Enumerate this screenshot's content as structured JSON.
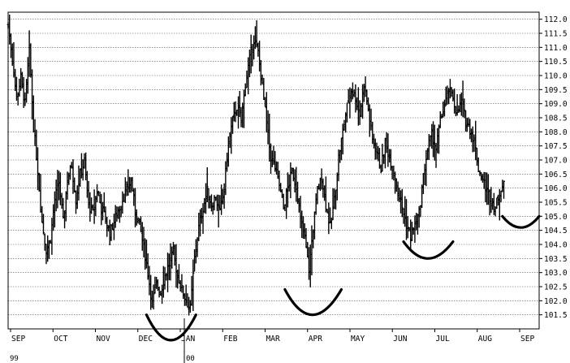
{
  "chart_data": {
    "type": "bar",
    "subtype": "ohlc-price-bars",
    "title": "",
    "xlabel": "",
    "ylabel": "",
    "ylim": [
      101.0,
      112.25
    ],
    "y_ticks": [
      "101.5",
      "102.0",
      "102.5",
      "103.0",
      "103.5",
      "104.0",
      "104.5",
      "105.0",
      "105.5",
      "106.0",
      "106.5",
      "107.0",
      "107.5",
      "108.0",
      "108.5",
      "109.0",
      "109.5",
      "110.0",
      "110.5",
      "111.0",
      "111.5",
      "112.0"
    ],
    "x_ticks": [
      "SEP",
      "OCT",
      "NOV",
      "DEC",
      "JAN",
      "FEB",
      "MAR",
      "APR",
      "MAY",
      "JUN",
      "JUL",
      "AUG",
      "SEP"
    ],
    "year_labels": [
      "99",
      "00"
    ],
    "grid": true,
    "y_axis_side": "right",
    "colors": {
      "bars": "#000000",
      "grid": "#555555",
      "annotation": "#000000"
    },
    "x_range": [
      0,
      376
    ],
    "price_path": [
      [
        0,
        111.8
      ],
      [
        3,
        110.6
      ],
      [
        6,
        109.2
      ],
      [
        9,
        109.9
      ],
      [
        12,
        109.0
      ],
      [
        15,
        110.9
      ],
      [
        18,
        108.2
      ],
      [
        21,
        106.6
      ],
      [
        24,
        104.8
      ],
      [
        27,
        103.8
      ],
      [
        30,
        104.2
      ],
      [
        33,
        105.6
      ],
      [
        36,
        106.2
      ],
      [
        39,
        104.8
      ],
      [
        42,
        106.3
      ],
      [
        45,
        106.8
      ],
      [
        48,
        105.6
      ],
      [
        51,
        106.5
      ],
      [
        54,
        106.9
      ],
      [
        57,
        105.4
      ],
      [
        60,
        105.1
      ],
      [
        63,
        105.9
      ],
      [
        66,
        105.3
      ],
      [
        69,
        104.9
      ],
      [
        72,
        104.4
      ],
      [
        75,
        104.8
      ],
      [
        78,
        105.2
      ],
      [
        81,
        105.6
      ],
      [
        84,
        105.9
      ],
      [
        87,
        106.3
      ],
      [
        90,
        105.2
      ],
      [
        93,
        104.7
      ],
      [
        96,
        103.9
      ],
      [
        99,
        103.0
      ],
      [
        102,
        101.9
      ],
      [
        105,
        102.6
      ],
      [
        108,
        102.3
      ],
      [
        111,
        102.9
      ],
      [
        114,
        103.3
      ],
      [
        117,
        103.7
      ],
      [
        120,
        102.9
      ],
      [
        123,
        102.4
      ],
      [
        126,
        102.0
      ],
      [
        129,
        101.7
      ],
      [
        132,
        103.5
      ],
      [
        135,
        104.6
      ],
      [
        138,
        105.3
      ],
      [
        141,
        105.9
      ],
      [
        144,
        105.4
      ],
      [
        147,
        105.7
      ],
      [
        150,
        105.1
      ],
      [
        153,
        106.0
      ],
      [
        156,
        107.6
      ],
      [
        159,
        108.4
      ],
      [
        162,
        108.9
      ],
      [
        165,
        108.4
      ],
      [
        168,
        109.7
      ],
      [
        171,
        110.6
      ],
      [
        174,
        111.3
      ],
      [
        177,
        110.8
      ],
      [
        180,
        109.6
      ],
      [
        183,
        108.3
      ],
      [
        186,
        107.1
      ],
      [
        189,
        106.7
      ],
      [
        192,
        106.1
      ],
      [
        195,
        105.3
      ],
      [
        198,
        106.0
      ],
      [
        201,
        106.6
      ],
      [
        204,
        106.1
      ],
      [
        207,
        104.9
      ],
      [
        210,
        104.2
      ],
      [
        213,
        103.1
      ],
      [
        216,
        104.6
      ],
      [
        219,
        105.9
      ],
      [
        222,
        106.4
      ],
      [
        225,
        105.4
      ],
      [
        228,
        104.6
      ],
      [
        231,
        105.6
      ],
      [
        234,
        107.1
      ],
      [
        237,
        108.0
      ],
      [
        240,
        108.9
      ],
      [
        243,
        109.5
      ],
      [
        246,
        109.2
      ],
      [
        249,
        108.6
      ],
      [
        252,
        109.7
      ],
      [
        255,
        108.8
      ],
      [
        258,
        107.7
      ],
      [
        261,
        107.3
      ],
      [
        264,
        106.7
      ],
      [
        267,
        107.6
      ],
      [
        270,
        107.1
      ],
      [
        273,
        106.6
      ],
      [
        276,
        105.9
      ],
      [
        279,
        105.3
      ],
      [
        282,
        104.7
      ],
      [
        285,
        104.3
      ],
      [
        288,
        104.7
      ],
      [
        291,
        105.1
      ],
      [
        294,
        106.4
      ],
      [
        297,
        107.4
      ],
      [
        300,
        107.9
      ],
      [
        303,
        107.4
      ],
      [
        306,
        108.4
      ],
      [
        309,
        108.9
      ],
      [
        312,
        109.5
      ],
      [
        315,
        109.2
      ],
      [
        318,
        108.6
      ],
      [
        321,
        109.1
      ],
      [
        324,
        108.4
      ],
      [
        327,
        108.1
      ],
      [
        330,
        107.7
      ],
      [
        333,
        106.7
      ],
      [
        336,
        106.3
      ],
      [
        339,
        105.9
      ],
      [
        342,
        105.6
      ],
      [
        345,
        105.3
      ],
      [
        348,
        105.9
      ],
      [
        351,
        106.1
      ]
    ],
    "annotations": [
      {
        "type": "rounding-bottom-arc",
        "x_from": 98,
        "x_to": 133,
        "x_mid": 115,
        "y_ends": 101.5,
        "y_low": 100.6
      },
      {
        "type": "rounding-bottom-arc",
        "x_from": 196,
        "x_to": 236,
        "x_mid": 215,
        "y_ends": 102.4,
        "y_low": 101.5
      },
      {
        "type": "rounding-bottom-arc",
        "x_from": 280,
        "x_to": 315,
        "x_mid": 297,
        "y_ends": 104.1,
        "y_low": 103.5
      },
      {
        "type": "rounding-bottom-arc",
        "x_from": 350,
        "x_to": 376,
        "x_mid": 363,
        "y_ends": 105.0,
        "y_low": 104.6
      }
    ]
  }
}
